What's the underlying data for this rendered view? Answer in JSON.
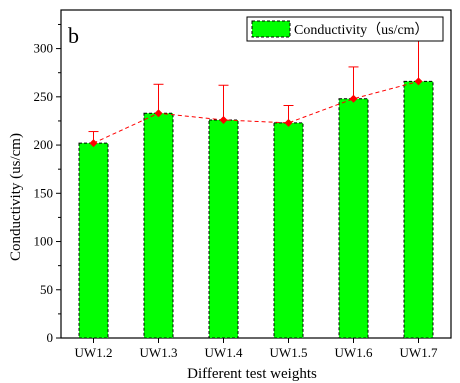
{
  "chart_data": {
    "type": "bar",
    "panel_label": "b",
    "title": "",
    "xlabel": "Different test weights",
    "ylabel": "Conductivity (us/cm)",
    "categories": [
      "UW1.2",
      "UW1.3",
      "UW1.4",
      "UW1.5",
      "UW1.6",
      "UW1.7"
    ],
    "series": [
      {
        "name": "Conductivity（us/cm）",
        "values": [
          202,
          233,
          226,
          223,
          248,
          266
        ],
        "errors": [
          12,
          30,
          36,
          18,
          33,
          44
        ],
        "bar_color": "#00ff00",
        "bar_edge_color": "#000000",
        "line_color": "#ff0000",
        "marker_color": "#ff0000",
        "error_bar_color": "#ff0000",
        "trend_line_style": "dashed"
      }
    ],
    "ylim": [
      0,
      340
    ],
    "yticks": [
      0,
      50,
      100,
      150,
      200,
      250,
      300
    ],
    "grid": false,
    "legend_position": "top-right"
  }
}
